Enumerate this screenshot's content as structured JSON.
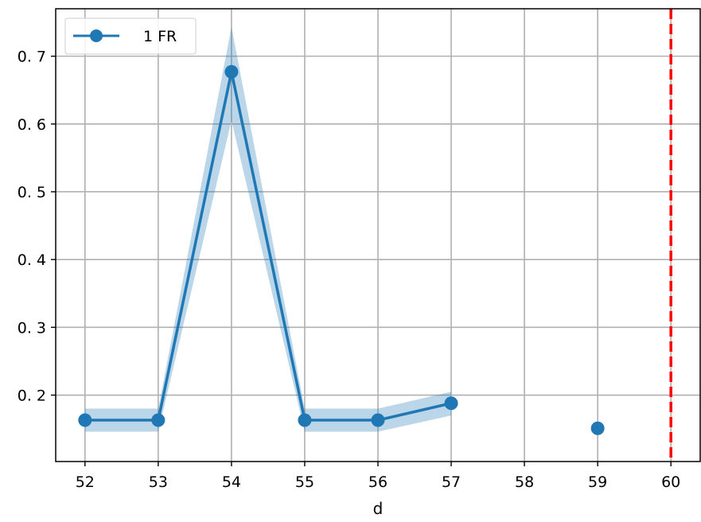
{
  "chart_data": {
    "type": "line",
    "title": "",
    "xlabel": "d",
    "ylabel": "",
    "xlim": [
      51.6,
      60.4
    ],
    "ylim": [
      0.102,
      0.77
    ],
    "x_ticks": [
      52,
      53,
      54,
      55,
      56,
      57,
      58,
      59,
      60
    ],
    "y_ticks": [
      0.2,
      0.3,
      0.4,
      0.5,
      0.6,
      0.7
    ],
    "y_tick_labels": [
      "0. 2",
      "0. 3",
      "0. 4",
      "0. 5",
      "0. 6",
      "0. 7"
    ],
    "grid": true,
    "legend_position": "top-left",
    "series": [
      {
        "name": "1 FR",
        "color": "#1f77b4",
        "band_color": "#1f77b4",
        "points": [
          {
            "x": 52,
            "y": 0.163,
            "lo": 0.146,
            "hi": 0.18
          },
          {
            "x": 53,
            "y": 0.163,
            "lo": 0.146,
            "hi": 0.18
          },
          {
            "x": 54,
            "y": 0.677,
            "lo": 0.605,
            "hi": 0.743
          },
          {
            "x": 55,
            "y": 0.163,
            "lo": 0.146,
            "hi": 0.18
          },
          {
            "x": 56,
            "y": 0.163,
            "lo": 0.146,
            "hi": 0.18
          },
          {
            "x": 57,
            "y": 0.188,
            "lo": 0.17,
            "hi": 0.205
          },
          {
            "x": 58,
            "y": null,
            "lo": null,
            "hi": null
          },
          {
            "x": 59,
            "y": 0.151,
            "lo": null,
            "hi": null
          }
        ]
      }
    ],
    "reference_lines": [
      {
        "axis": "x",
        "value": 60,
        "color": "#ff0000",
        "style": "dashed"
      }
    ]
  }
}
